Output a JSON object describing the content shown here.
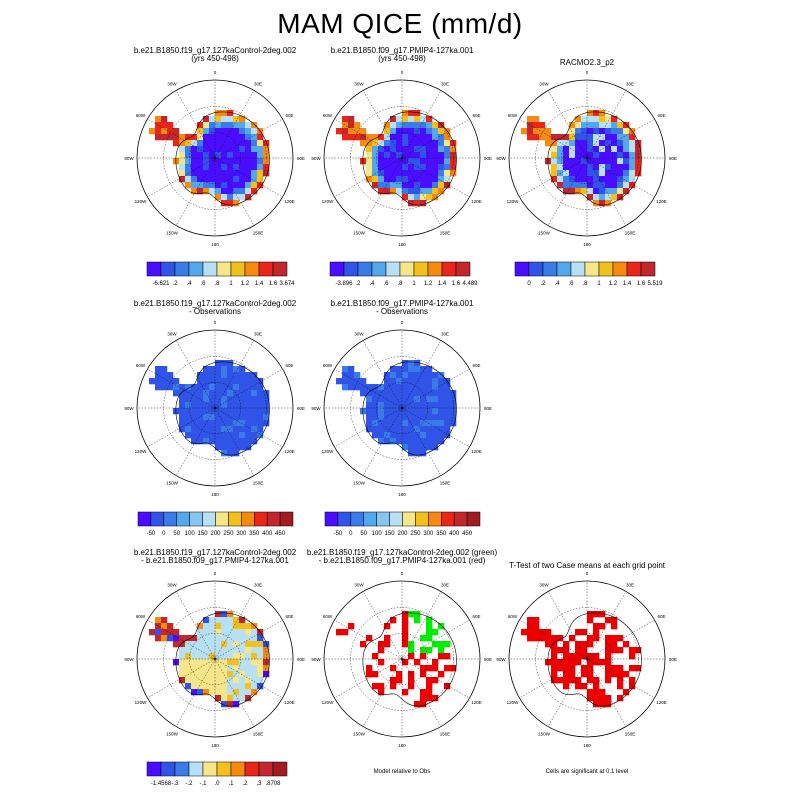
{
  "figure": {
    "title": "MAM QICE (mm/d)"
  },
  "chart_data": [
    {
      "type": "heatmap",
      "title_lines": [
        "b.e21.B1850.f19_g17.127kaControl-2deg.002",
        "(yrs 450-498)"
      ],
      "levels": [
        "-6.621",
        ".2",
        ".4",
        ".6",
        ".8",
        "1",
        "1.2",
        "1.4",
        "1.6",
        "3.674"
      ],
      "colormap": [
        "#4B0DFF",
        "#3054E8",
        "#3B7BE8",
        "#52A8EA",
        "#B7E0F4",
        "#F5E68A",
        "#F2C01C",
        "#F58A10",
        "#E8261A",
        "#C1272D"
      ],
      "pattern": "model",
      "seed": 11
    },
    {
      "type": "heatmap",
      "title_lines": [
        "b.e21.B1850.f09_g17.PMIP4-127ka.001",
        "(yrs 450-498)"
      ],
      "levels": [
        "-3.896",
        ".2",
        ".4",
        ".6",
        ".8",
        "1",
        "1.2",
        "1.4",
        "1.6",
        "4.489"
      ],
      "colormap": [
        "#4B0DFF",
        "#3054E8",
        "#3B7BE8",
        "#52A8EA",
        "#B7E0F4",
        "#F5E68A",
        "#F2C01C",
        "#F58A10",
        "#E8261A",
        "#C1272D"
      ],
      "pattern": "model",
      "seed": 23
    },
    {
      "type": "heatmap",
      "title_lines": [
        "RACMO2.3_p2"
      ],
      "levels": [
        "0",
        ".2",
        ".4",
        ".6",
        ".8",
        "1",
        "1.2",
        "1.4",
        "1.6",
        "5.519"
      ],
      "colormap": [
        "#4B0DFF",
        "#3054E8",
        "#3B7BE8",
        "#52A8EA",
        "#B7E0F4",
        "#F5E68A",
        "#F2C01C",
        "#F58A10",
        "#E8261A",
        "#C1272D"
      ],
      "pattern": "racmo",
      "seed": 37
    },
    {
      "type": "heatmap",
      "title_lines": [
        "b.e21.B1850.f19_g17.127kaControl-2deg.002",
        "- Observations"
      ],
      "levels": [
        "-50",
        "0",
        "50",
        "100",
        "150",
        "200",
        "250",
        "300",
        "350",
        "400",
        "450"
      ],
      "colormap": [
        "#4B0DFF",
        "#3054E8",
        "#3B7BE8",
        "#52A8EA",
        "#86C5EE",
        "#B7E0F4",
        "#F5E68A",
        "#F2C01C",
        "#F58A10",
        "#E8261A",
        "#C1272D",
        "#A01C22"
      ],
      "pattern": "obs",
      "seed": 5
    },
    {
      "type": "heatmap",
      "title_lines": [
        "b.e21.B1850.f09_g17.PMIP4-127ka.001",
        "- Observations"
      ],
      "levels": [
        "-50",
        "0",
        "50",
        "100",
        "150",
        "200",
        "250",
        "300",
        "350",
        "400",
        "450"
      ],
      "colormap": [
        "#4B0DFF",
        "#3054E8",
        "#3B7BE8",
        "#52A8EA",
        "#86C5EE",
        "#B7E0F4",
        "#F5E68A",
        "#F2C01C",
        "#F58A10",
        "#E8261A",
        "#C1272D",
        "#A01C22"
      ],
      "pattern": "obs",
      "seed": 9
    },
    {
      "type": "heatmap",
      "title_lines": [
        "b.e21.B1850.f19_g17.127kaControl-2deg.002",
        "- b.e21.B1850.f09_g17.PMIP4-127ka.001"
      ],
      "levels": [
        "-1.4568",
        "-.3",
        "-.2",
        "-.1",
        ".0",
        ".1",
        ".2",
        ".3",
        ".8708"
      ],
      "colormap": [
        "#4B0DFF",
        "#3054E8",
        "#3B7BE8",
        "#B7E0F4",
        "#F5E68A",
        "#F2C01C",
        "#F58A10",
        "#E8261A",
        "#C1272D",
        "#A01C22"
      ],
      "pattern": "diff",
      "seed": 51
    },
    {
      "type": "heatmap",
      "title_lines": [
        "b.e21.B1850.f19_g17.127kaControl-2deg.002 (green)",
        "- b.e21.B1850.f09_g17.PMIP4-127ka.001 (red)"
      ],
      "footnote": "Model relative to Obs",
      "colors": {
        "green": "#00EE00",
        "red": "#EE0000"
      },
      "pattern": "rg",
      "seed": 77
    },
    {
      "type": "heatmap",
      "title_lines": [
        "T-Test of two Case means at each grid point"
      ],
      "footnote": "Cells are significant at 0.1 level",
      "colors": {
        "red": "#EE0000"
      },
      "pattern": "ttest",
      "seed": 91
    }
  ],
  "map_labels": {
    "lon": [
      "0",
      "30E",
      "60E",
      "90E",
      "120E",
      "150E",
      "180",
      "150W",
      "120W",
      "90W",
      "60W",
      "30W"
    ]
  }
}
